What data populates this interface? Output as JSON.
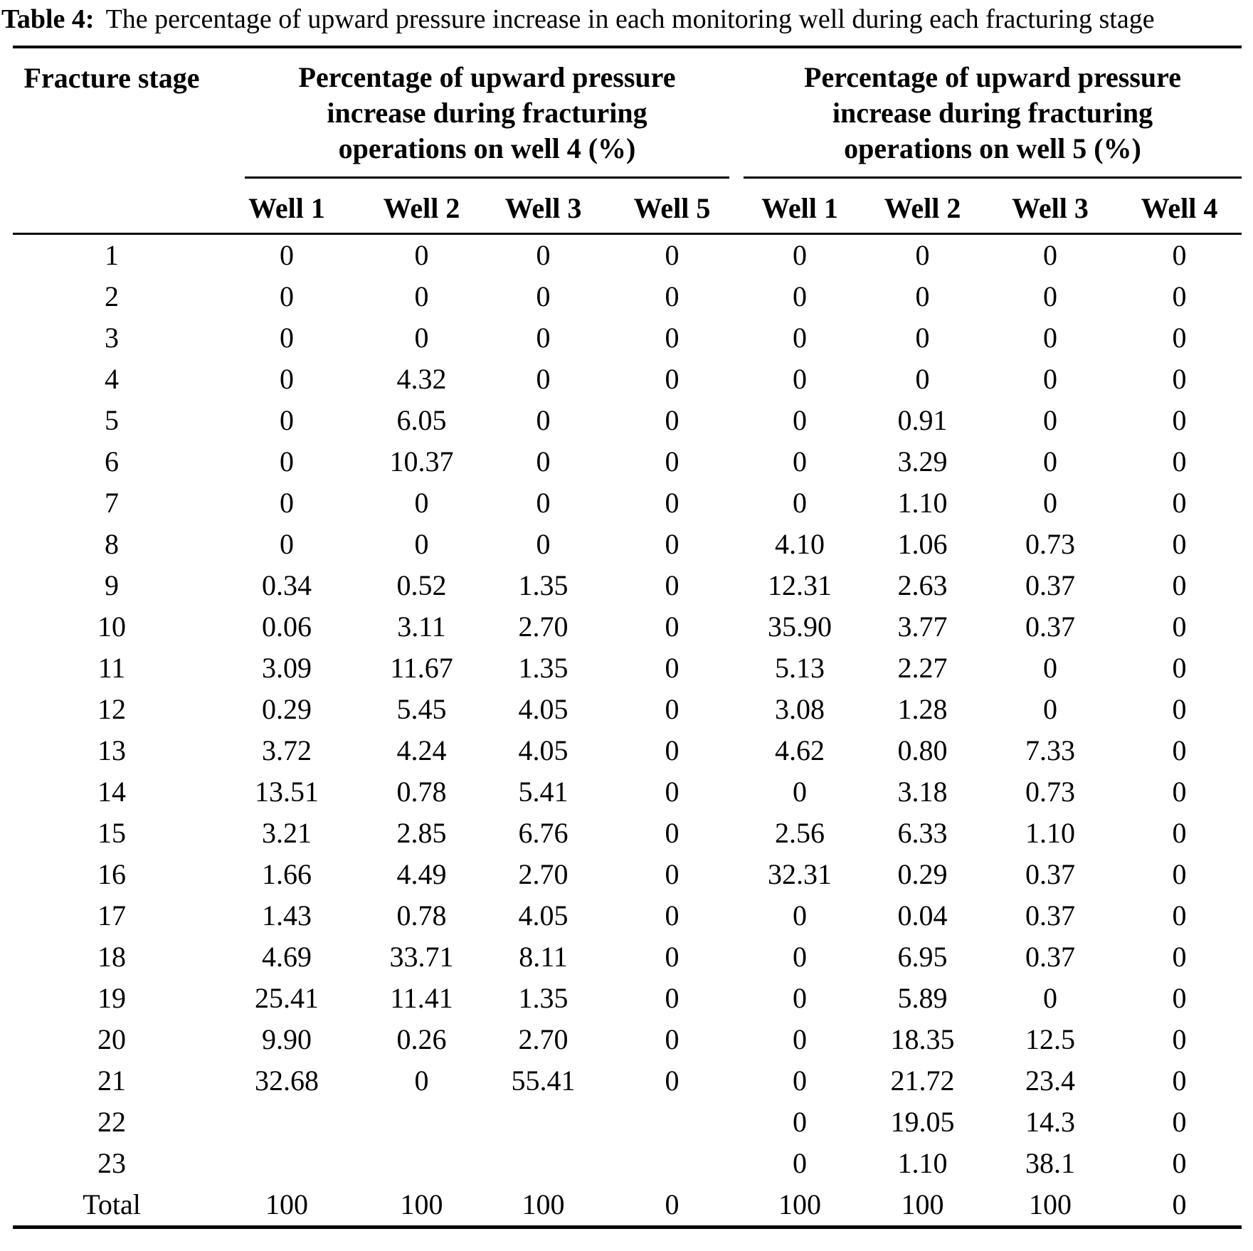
{
  "title": {
    "label": "Table 4:",
    "text": "The percentage of upward pressure increase in each monitoring well during each fracturing stage"
  },
  "table": {
    "stage_header": "Fracture stage",
    "groups": [
      {
        "title": "Percentage of upward pressure increase during fracturing operations on well 4 (%)",
        "columns": [
          "Well 1",
          "Well 2",
          "Well 3",
          "Well 5"
        ]
      },
      {
        "title": "Percentage of upward pressure increase during fracturing operations on well 5 (%)",
        "columns": [
          "Well 1",
          "Well 2",
          "Well 3",
          "Well 4"
        ]
      }
    ],
    "rows": [
      {
        "stage": "1",
        "values": [
          "0",
          "0",
          "0",
          "0",
          "0",
          "0",
          "0",
          "0"
        ]
      },
      {
        "stage": "2",
        "values": [
          "0",
          "0",
          "0",
          "0",
          "0",
          "0",
          "0",
          "0"
        ]
      },
      {
        "stage": "3",
        "values": [
          "0",
          "0",
          "0",
          "0",
          "0",
          "0",
          "0",
          "0"
        ]
      },
      {
        "stage": "4",
        "values": [
          "0",
          "4.32",
          "0",
          "0",
          "0",
          "0",
          "0",
          "0"
        ]
      },
      {
        "stage": "5",
        "values": [
          "0",
          "6.05",
          "0",
          "0",
          "0",
          "0.91",
          "0",
          "0"
        ]
      },
      {
        "stage": "6",
        "values": [
          "0",
          "10.37",
          "0",
          "0",
          "0",
          "3.29",
          "0",
          "0"
        ]
      },
      {
        "stage": "7",
        "values": [
          "0",
          "0",
          "0",
          "0",
          "0",
          "1.10",
          "0",
          "0"
        ]
      },
      {
        "stage": "8",
        "values": [
          "0",
          "0",
          "0",
          "0",
          "4.10",
          "1.06",
          "0.73",
          "0"
        ]
      },
      {
        "stage": "9",
        "values": [
          "0.34",
          "0.52",
          "1.35",
          "0",
          "12.31",
          "2.63",
          "0.37",
          "0"
        ]
      },
      {
        "stage": "10",
        "values": [
          "0.06",
          "3.11",
          "2.70",
          "0",
          "35.90",
          "3.77",
          "0.37",
          "0"
        ]
      },
      {
        "stage": "11",
        "values": [
          "3.09",
          "11.67",
          "1.35",
          "0",
          "5.13",
          "2.27",
          "0",
          "0"
        ]
      },
      {
        "stage": "12",
        "values": [
          "0.29",
          "5.45",
          "4.05",
          "0",
          "3.08",
          "1.28",
          "0",
          "0"
        ]
      },
      {
        "stage": "13",
        "values": [
          "3.72",
          "4.24",
          "4.05",
          "0",
          "4.62",
          "0.80",
          "7.33",
          "0"
        ]
      },
      {
        "stage": "14",
        "values": [
          "13.51",
          "0.78",
          "5.41",
          "0",
          "0",
          "3.18",
          "0.73",
          "0"
        ]
      },
      {
        "stage": "15",
        "values": [
          "3.21",
          "2.85",
          "6.76",
          "0",
          "2.56",
          "6.33",
          "1.10",
          "0"
        ]
      },
      {
        "stage": "16",
        "values": [
          "1.66",
          "4.49",
          "2.70",
          "0",
          "32.31",
          "0.29",
          "0.37",
          "0"
        ]
      },
      {
        "stage": "17",
        "values": [
          "1.43",
          "0.78",
          "4.05",
          "0",
          "0",
          "0.04",
          "0.37",
          "0"
        ]
      },
      {
        "stage": "18",
        "values": [
          "4.69",
          "33.71",
          "8.11",
          "0",
          "0",
          "6.95",
          "0.37",
          "0"
        ]
      },
      {
        "stage": "19",
        "values": [
          "25.41",
          "11.41",
          "1.35",
          "0",
          "0",
          "5.89",
          "0",
          "0"
        ]
      },
      {
        "stage": "20",
        "values": [
          "9.90",
          "0.26",
          "2.70",
          "0",
          "0",
          "18.35",
          "12.5",
          "0"
        ]
      },
      {
        "stage": "21",
        "values": [
          "32.68",
          "0",
          "55.41",
          "0",
          "0",
          "21.72",
          "23.4",
          "0"
        ]
      },
      {
        "stage": "22",
        "values": [
          "",
          "",
          "",
          "",
          "0",
          "19.05",
          "14.3",
          "0"
        ]
      },
      {
        "stage": "23",
        "values": [
          "",
          "",
          "",
          "",
          "0",
          "1.10",
          "38.1",
          "0"
        ]
      },
      {
        "stage": "Total",
        "values": [
          "100",
          "100",
          "100",
          "0",
          "100",
          "100",
          "100",
          "0"
        ]
      }
    ]
  },
  "colors": {
    "text": "#000000",
    "background": "#ffffff",
    "rule": "#000000"
  }
}
